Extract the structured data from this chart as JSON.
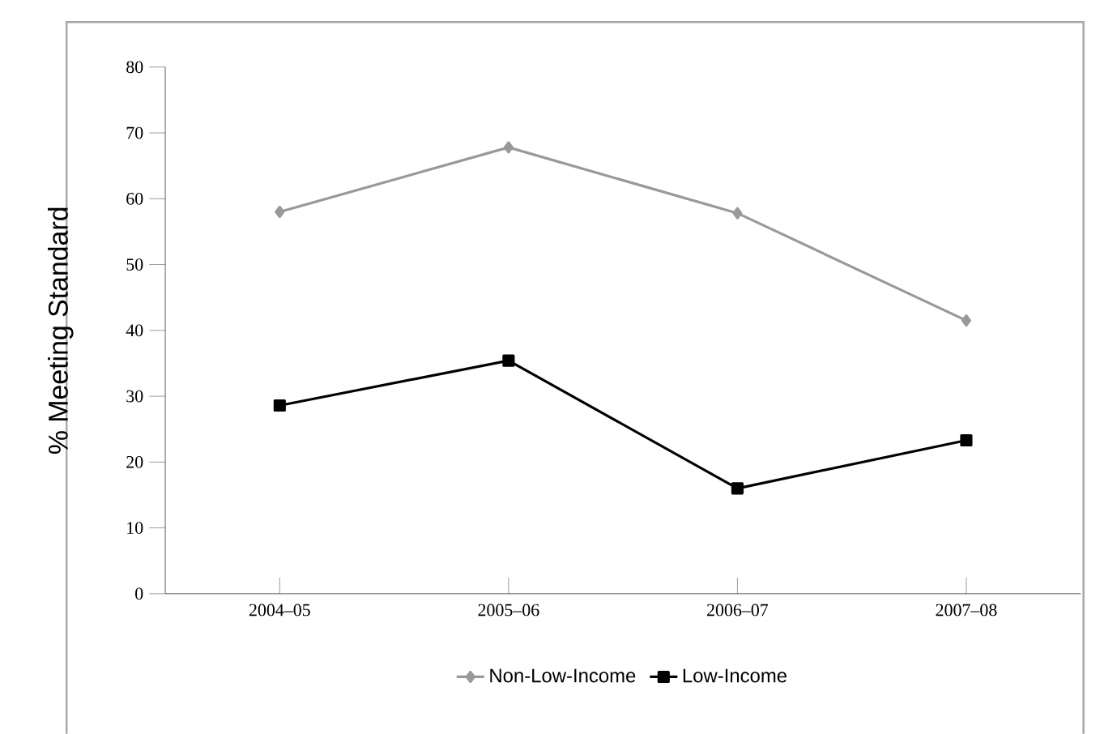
{
  "chart_data": {
    "type": "line",
    "ylabel": "% Meeting Standard",
    "categories": [
      "2004–05",
      "2005–06",
      "2006–07",
      "2007–08"
    ],
    "series": [
      {
        "name": "Non-Low-Income",
        "color": "#999999",
        "marker": "diamond",
        "values": [
          58.0,
          67.8,
          57.8,
          41.5
        ]
      },
      {
        "name": "Low-Income",
        "color": "#000000",
        "marker": "square",
        "values": [
          28.6,
          35.4,
          16.0,
          23.3
        ]
      }
    ],
    "ylim": [
      0,
      80
    ],
    "yticks": [
      0,
      10,
      20,
      30,
      40,
      50,
      60,
      70,
      80
    ],
    "grid": false,
    "legend": "bottom"
  }
}
